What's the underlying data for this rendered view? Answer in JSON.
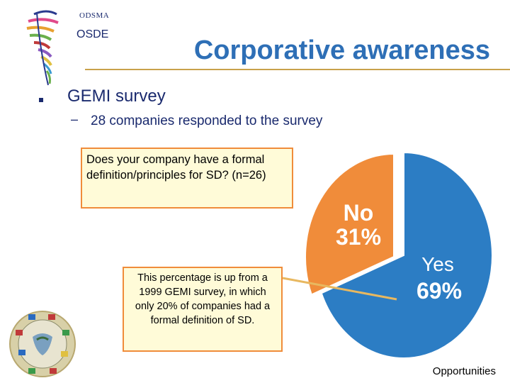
{
  "header": {
    "org": "ODSMA",
    "unit": "OSDE",
    "title": "Corporative awareness"
  },
  "bullets": {
    "level1": "GEMI survey",
    "level2": "28 companies responded to the survey"
  },
  "question": "Does your company have a formal definition/principles for SD? (n=26)",
  "note": "This percentage is up from a 1999 GEMI survey, in which only 20% of companies had a formal definition of SD.",
  "footer": "Opportunities",
  "colors": {
    "yes": "#2c7dc4",
    "no": "#f08c3a",
    "title": "#2e6fb6",
    "box_border": "#f08c3a",
    "box_fill": "#fffbd8"
  },
  "chart_data": {
    "type": "pie",
    "title": "",
    "slices": [
      {
        "label": "Yes",
        "value": 69,
        "value_label": "69%",
        "color": "#2c7dc4"
      },
      {
        "label": "No",
        "value": 31,
        "value_label": "31%",
        "color": "#f08c3a"
      }
    ]
  }
}
